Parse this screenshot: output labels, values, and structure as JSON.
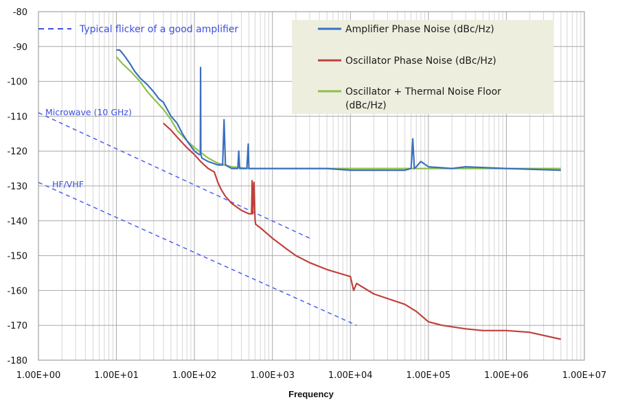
{
  "chart_data": {
    "type": "line",
    "title": "",
    "xlabel": "Frequency",
    "ylabel": "",
    "x_scale": "log",
    "xlim": [
      1,
      10000000
    ],
    "ylim": [
      -180,
      -80
    ],
    "grid": true,
    "x_ticks": [
      "1.00E+00",
      "1.00E+01",
      "1.00E+02",
      "1.00E+03",
      "1.00E+04",
      "1.00E+05",
      "1.00E+06",
      "1.00E+07"
    ],
    "y_ticks": [
      "-80",
      "-90",
      "-100",
      "-110",
      "-120",
      "-130",
      "-140",
      "-150",
      "-160",
      "-170",
      "-180"
    ],
    "legend_position": "top-right",
    "series": [
      {
        "name": "Amplifier Phase Noise (dBc/Hz)",
        "color": "#3b6fbf",
        "x": [
          10,
          11,
          12,
          13,
          15,
          17,
          20,
          25,
          30,
          35,
          40,
          50,
          60,
          70,
          80,
          100,
          115,
          119,
          120,
          121,
          125,
          150,
          200,
          230,
          240,
          250,
          300,
          360,
          370,
          380,
          400,
          470,
          490,
          500,
          600,
          700,
          800,
          1000,
          1500,
          2000,
          5000,
          10000,
          20000,
          50000,
          60000,
          63000,
          66000,
          70000,
          80000,
          100000,
          200000,
          300000,
          1000000,
          5000000
        ],
        "y": [
          -91,
          -91,
          -92,
          -93,
          -95,
          -97,
          -99,
          -101,
          -103,
          -105,
          -106,
          -110,
          -112,
          -115,
          -117,
          -120,
          -121,
          -121,
          -96,
          -121,
          -122,
          -123,
          -124,
          -124,
          -111,
          -124,
          -125,
          -125,
          -120,
          -125,
          -125,
          -125,
          -118,
          -125,
          -125,
          -125,
          -125,
          -125,
          -125,
          -125,
          -125,
          -125.5,
          -125.5,
          -125.5,
          -125,
          -116.5,
          -125,
          -124.5,
          -123,
          -124.5,
          -125,
          -124.5,
          -125,
          -125.5
        ]
      },
      {
        "name": "Oscillator Phase Noise (dBc/Hz)",
        "color": "#c0403b",
        "x": [
          40,
          50,
          60,
          80,
          100,
          120,
          150,
          180,
          200,
          220,
          250,
          300,
          400,
          500,
          540,
          550,
          560,
          580,
          600,
          610,
          700,
          1000,
          1500,
          2000,
          3000,
          5000,
          10000,
          11000,
          12000,
          20000,
          50000,
          70000,
          100000,
          150000,
          300000,
          500000,
          1000000,
          2000000,
          5000000
        ],
        "y": [
          -112,
          -114,
          -116,
          -119,
          -121,
          -123,
          -125,
          -126,
          -129,
          -131,
          -133,
          -135,
          -137,
          -138,
          -138,
          -128.5,
          -138,
          -129,
          -140,
          -141,
          -142,
          -145,
          -148,
          -150,
          -152,
          -154,
          -156,
          -160,
          -158,
          -161,
          -164,
          -166,
          -169,
          -170,
          -171,
          -171.5,
          -171.5,
          -172,
          -174
        ]
      },
      {
        "name": "Oscillator + Thermal Noise Floor (dBc/Hz)",
        "color": "#8cc04a",
        "x": [
          10,
          12,
          15,
          20,
          25,
          30,
          40,
          50,
          60,
          80,
          100,
          150,
          200,
          300,
          500,
          1000,
          2000,
          5000,
          10000,
          50000,
          100000,
          1000000,
          5000000
        ],
        "y": [
          -93,
          -95,
          -97,
          -100,
          -103,
          -105,
          -108,
          -111,
          -114,
          -117,
          -119,
          -122,
          -123.5,
          -124.5,
          -125,
          -125,
          -125,
          -125,
          -125,
          -125,
          -125,
          -125,
          -125
        ]
      }
    ],
    "reference_lines": [
      {
        "label": "Microwave (10 GHz)",
        "x": [
          1,
          3000
        ],
        "y": [
          -109,
          -145
        ]
      },
      {
        "label": "HF/VHF",
        "x": [
          1,
          12000
        ],
        "y": [
          -129,
          -170
        ]
      }
    ],
    "annotation": "Typical flicker of a good amplifier"
  }
}
